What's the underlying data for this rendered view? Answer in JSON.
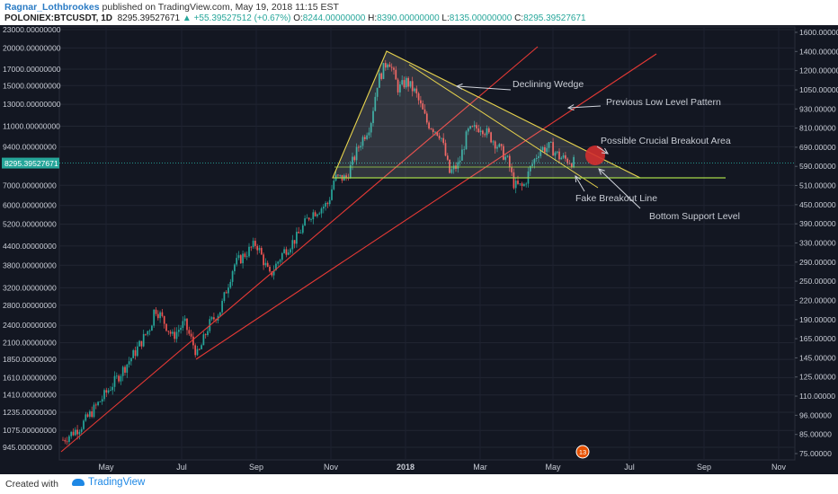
{
  "header": {
    "author": "Ragnar_Lothbrookes",
    "published": "published on TradingView.com, May 19, 2018 11:15 EST",
    "symbol": "POLONIEX:BTCUSDT, 1D",
    "last": "8295.39527671",
    "change": "+55.39527512 (+0.67%)",
    "o_label": "O:",
    "o_value": "8244.00000000",
    "h_label": "H:",
    "h_value": "8390.00000000",
    "l_label": "L:",
    "l_value": "8135.00000000",
    "c_label": "C:",
    "c_value": "8295.39527671"
  },
  "footer": {
    "created_with": "Created with",
    "brand": "TradingView"
  },
  "chart_data": {
    "type": "candlestick",
    "x_ticks": [
      "May",
      "Jul",
      "Sep",
      "Nov",
      "2018",
      "Mar",
      "May",
      "Jul",
      "Sep",
      "Nov"
    ],
    "left_axis_ticks": [
      "23000.00000000",
      "20000.00000000",
      "17000.00000000",
      "15000.00000000",
      "13000.00000000",
      "11000.00000000",
      "9400.00000000",
      "7000.00000000",
      "6000.00000000",
      "5200.00000000",
      "4400.00000000",
      "3800.00000000",
      "3200.00000000",
      "2800.00000000",
      "2400.00000000",
      "2100.00000000",
      "1850.00000000",
      "1610.00000000",
      "1410.00000000",
      "1235.00000000",
      "1075.00000000",
      "945.00000000"
    ],
    "right_axis_ticks": [
      "1600.00000",
      "1400.00000",
      "1200.00000",
      "1050.00000",
      "930.00000",
      "810.00000",
      "690.00000",
      "590.00000",
      "510.00000",
      "450.00000",
      "390.00000",
      "330.00000",
      "290.00000",
      "250.00000",
      "220.00000",
      "190.00000",
      "165.00000",
      "145.00000",
      "125.00000",
      "110.00000",
      "96.00000",
      "85.00000",
      "75.00000"
    ],
    "last_price_label": "8295.39527671",
    "left_scale": "log",
    "annotations": [
      "Declining Wedge",
      "Previous Low Level Pattern",
      "Possible Crucial Breakout Area",
      "Fake Breakout Line",
      "Bottom Support Level"
    ],
    "badge": "13",
    "colors": {
      "up": "#26a69a",
      "down": "#ef5350",
      "wedge": "#e8d44d",
      "trend": "#e53935",
      "support": "#a6d94a",
      "circle": "#d32f2f",
      "background": "#131722"
    }
  }
}
